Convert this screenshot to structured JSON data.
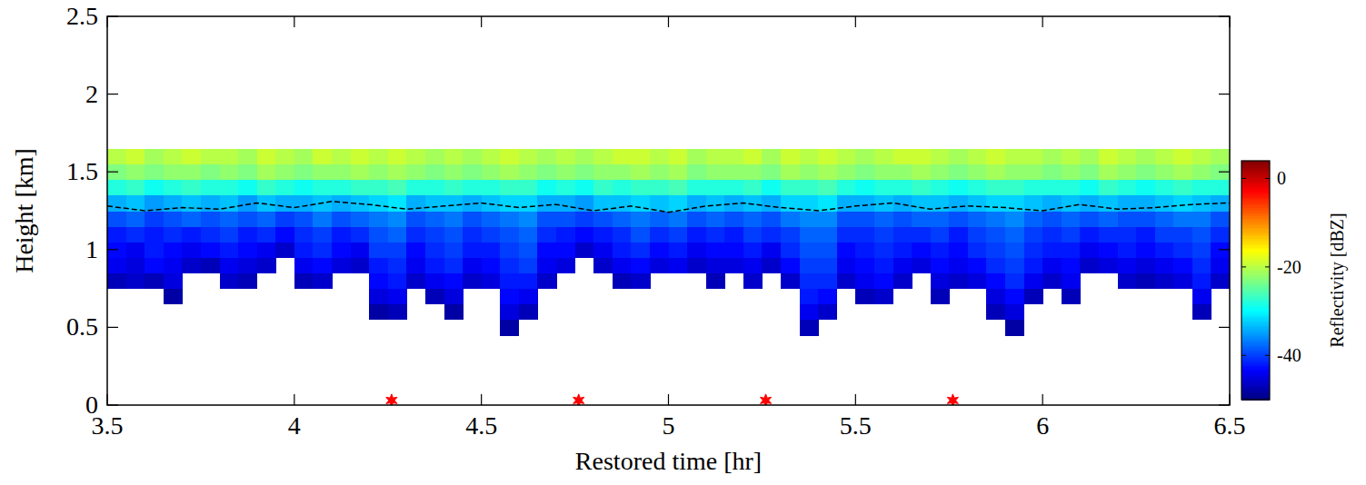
{
  "chart_data": {
    "type": "heatmap",
    "xlabel": "Restored time [hr]",
    "ylabel": "Height [km]",
    "xlim": [
      3.5,
      6.5
    ],
    "ylim": [
      0,
      2.5
    ],
    "xticks": [
      3.5,
      4,
      4.5,
      5,
      5.5,
      6,
      6.5
    ],
    "yticks": [
      0,
      0.5,
      1,
      1.5,
      2,
      2.5
    ],
    "x_edges": [
      3.5,
      3.55,
      3.6,
      3.65,
      3.7,
      3.75,
      3.8,
      3.85,
      3.9,
      3.95,
      4,
      4.05,
      4.1,
      4.15,
      4.2,
      4.25,
      4.3,
      4.35,
      4.4,
      4.45,
      4.5,
      4.55,
      4.6,
      4.65,
      4.7,
      4.75,
      4.8,
      4.85,
      4.9,
      4.95,
      5,
      5.05,
      5.1,
      5.15,
      5.2,
      5.25,
      5.3,
      5.35,
      5.4,
      5.45,
      5.5,
      5.55,
      5.6,
      5.65,
      5.7,
      5.75,
      5.8,
      5.85,
      5.9,
      5.95,
      6,
      6.05,
      6.1,
      6.15,
      6.2,
      6.25,
      6.3,
      6.35,
      6.4,
      6.45,
      6.5
    ],
    "y_edges": [
      0.45,
      0.55,
      0.65,
      0.75,
      0.85,
      0.95,
      1.05,
      1.15,
      1.25,
      1.35,
      1.45,
      1.55,
      1.65
    ],
    "cells": [
      [
        null,
        null,
        null,
        -47,
        -44,
        -43,
        -42,
        -39,
        -34,
        -28,
        -23,
        -20
      ],
      [
        null,
        null,
        null,
        -46,
        -45,
        -44,
        -41,
        -38,
        -33,
        -27,
        -22,
        -19
      ],
      [
        null,
        null,
        null,
        -47,
        -43,
        -42,
        -42,
        -40,
        -35,
        -29,
        -23,
        -21
      ],
      [
        null,
        null,
        -48,
        -45,
        -44,
        -43,
        -41,
        -39,
        -34,
        -28,
        -22,
        -20
      ],
      [
        null,
        null,
        null,
        null,
        -46,
        -44,
        -42,
        -38,
        -33,
        -27,
        -22,
        -19
      ],
      [
        null,
        null,
        null,
        null,
        -47,
        -43,
        -41,
        -39,
        -34,
        -28,
        -23,
        -20
      ],
      [
        null,
        null,
        null,
        -46,
        -44,
        -42,
        -40,
        -38,
        -33,
        -28,
        -22,
        -20
      ],
      [
        null,
        null,
        null,
        -47,
        -45,
        -43,
        -42,
        -39,
        -35,
        -29,
        -23,
        -21
      ],
      [
        null,
        null,
        null,
        null,
        -46,
        -44,
        -41,
        -38,
        -33,
        -27,
        -21,
        -19
      ],
      [
        null,
        null,
        null,
        null,
        null,
        -46,
        -43,
        -40,
        -34,
        -28,
        -22,
        -20
      ],
      [
        null,
        null,
        null,
        -47,
        -44,
        -42,
        -41,
        -39,
        -34,
        -29,
        -23,
        -21
      ],
      [
        null,
        null,
        null,
        -46,
        -43,
        -41,
        -40,
        -37,
        -33,
        -28,
        -22,
        -19
      ],
      [
        null,
        null,
        null,
        null,
        -45,
        -43,
        -42,
        -39,
        -34,
        -28,
        -22,
        -20
      ],
      [
        null,
        null,
        null,
        null,
        -46,
        -44,
        -41,
        -38,
        -33,
        -27,
        -21,
        -19
      ],
      [
        null,
        -48,
        -45,
        -43,
        -42,
        -40,
        -39,
        -37,
        -32,
        -27,
        -22,
        -20
      ],
      [
        null,
        -47,
        -44,
        -42,
        -41,
        -40,
        -38,
        -36,
        -31,
        -26,
        -21,
        -19
      ],
      [
        null,
        null,
        null,
        -46,
        -44,
        -43,
        -41,
        -39,
        -34,
        -28,
        -22,
        -20
      ],
      [
        null,
        null,
        -47,
        -44,
        -42,
        -41,
        -40,
        -38,
        -33,
        -28,
        -23,
        -21
      ],
      [
        null,
        -48,
        -45,
        -43,
        -41,
        -40,
        -39,
        -37,
        -33,
        -27,
        -22,
        -20
      ],
      [
        null,
        null,
        null,
        -46,
        -44,
        -42,
        -41,
        -39,
        -34,
        -28,
        -23,
        -21
      ],
      [
        null,
        null,
        null,
        -45,
        -43,
        -42,
        -40,
        -38,
        -33,
        -28,
        -22,
        -20
      ],
      [
        -48,
        -45,
        -43,
        -42,
        -41,
        -40,
        -39,
        -37,
        -32,
        -27,
        -21,
        -19
      ],
      [
        null,
        -47,
        -44,
        -42,
        -40,
        -39,
        -38,
        -36,
        -32,
        -27,
        -22,
        -20
      ],
      [
        null,
        null,
        null,
        -46,
        -44,
        -43,
        -41,
        -39,
        -34,
        -29,
        -23,
        -21
      ],
      [
        null,
        null,
        null,
        null,
        -45,
        -43,
        -42,
        -39,
        -34,
        -28,
        -22,
        -20
      ],
      [
        null,
        null,
        null,
        null,
        null,
        -46,
        -43,
        -40,
        -35,
        -29,
        -23,
        -21
      ],
      [
        null,
        null,
        null,
        null,
        -46,
        -44,
        -42,
        -39,
        -33,
        -27,
        -22,
        -20
      ],
      [
        null,
        null,
        null,
        -47,
        -44,
        -42,
        -41,
        -38,
        -33,
        -28,
        -22,
        -19
      ],
      [
        null,
        null,
        null,
        -46,
        -43,
        -41,
        -39,
        -37,
        -32,
        -27,
        -21,
        -19
      ],
      [
        null,
        null,
        null,
        null,
        -45,
        -43,
        -41,
        -38,
        -33,
        -27,
        -22,
        -20
      ],
      [
        null,
        null,
        null,
        null,
        -44,
        -42,
        -40,
        -37,
        -32,
        -26,
        -21,
        -19
      ],
      [
        null,
        null,
        null,
        null,
        -46,
        -44,
        -42,
        -39,
        -34,
        -28,
        -23,
        -21
      ],
      [
        null,
        null,
        null,
        -47,
        -45,
        -43,
        -41,
        -38,
        -33,
        -28,
        -22,
        -20
      ],
      [
        null,
        null,
        null,
        null,
        -45,
        -43,
        -42,
        -39,
        -34,
        -28,
        -22,
        -20
      ],
      [
        null,
        null,
        null,
        -46,
        -44,
        -42,
        -40,
        -38,
        -33,
        -27,
        -22,
        -19
      ],
      [
        null,
        null,
        null,
        null,
        -46,
        -44,
        -41,
        -39,
        -34,
        -29,
        -23,
        -21
      ],
      [
        null,
        null,
        null,
        -46,
        -43,
        -41,
        -40,
        -37,
        -32,
        -27,
        -21,
        -19
      ],
      [
        -47,
        -44,
        -42,
        -41,
        -40,
        -39,
        -38,
        -36,
        -32,
        -27,
        -22,
        -20
      ],
      [
        null,
        -46,
        -43,
        -41,
        -40,
        -39,
        -38,
        -36,
        -31,
        -26,
        -21,
        -19
      ],
      [
        null,
        null,
        null,
        -46,
        -44,
        -43,
        -41,
        -39,
        -34,
        -28,
        -22,
        -20
      ],
      [
        null,
        null,
        -47,
        -44,
        -43,
        -42,
        -41,
        -39,
        -34,
        -29,
        -23,
        -21
      ],
      [
        null,
        null,
        -46,
        -43,
        -42,
        -41,
        -40,
        -38,
        -33,
        -28,
        -22,
        -20
      ],
      [
        null,
        null,
        null,
        -46,
        -44,
        -42,
        -41,
        -39,
        -34,
        -28,
        -22,
        -19
      ],
      [
        null,
        null,
        null,
        null,
        -45,
        -43,
        -41,
        -38,
        -33,
        -27,
        -21,
        -19
      ],
      [
        null,
        null,
        -47,
        -45,
        -43,
        -42,
        -40,
        -38,
        -33,
        -28,
        -22,
        -20
      ],
      [
        null,
        null,
        null,
        -46,
        -44,
        -43,
        -42,
        -39,
        -34,
        -29,
        -23,
        -21
      ],
      [
        null,
        null,
        null,
        -45,
        -43,
        -41,
        -40,
        -38,
        -33,
        -28,
        -22,
        -20
      ],
      [
        null,
        -47,
        -45,
        -43,
        -41,
        -40,
        -39,
        -37,
        -32,
        -27,
        -21,
        -19
      ],
      [
        -48,
        -45,
        -43,
        -41,
        -40,
        -39,
        -38,
        -36,
        -32,
        -27,
        -22,
        -20
      ],
      [
        null,
        null,
        -47,
        -44,
        -42,
        -41,
        -40,
        -38,
        -33,
        -28,
        -22,
        -20
      ],
      [
        null,
        null,
        null,
        -46,
        -44,
        -42,
        -41,
        -39,
        -34,
        -28,
        -23,
        -21
      ],
      [
        null,
        null,
        -47,
        -44,
        -43,
        -42,
        -40,
        -38,
        -33,
        -28,
        -22,
        -20
      ],
      [
        null,
        null,
        null,
        null,
        -46,
        -44,
        -42,
        -39,
        -34,
        -29,
        -23,
        -21
      ],
      [
        null,
        null,
        null,
        null,
        -45,
        -43,
        -41,
        -38,
        -33,
        -27,
        -21,
        -19
      ],
      [
        null,
        null,
        null,
        -46,
        -44,
        -42,
        -41,
        -39,
        -34,
        -28,
        -22,
        -20
      ],
      [
        null,
        null,
        null,
        -47,
        -45,
        -43,
        -42,
        -39,
        -34,
        -29,
        -23,
        -21
      ],
      [
        null,
        null,
        null,
        -46,
        -44,
        -42,
        -40,
        -38,
        -33,
        -28,
        -22,
        -20
      ],
      [
        null,
        null,
        null,
        -45,
        -43,
        -41,
        -40,
        -37,
        -32,
        -27,
        -21,
        -19
      ],
      [
        null,
        -47,
        -44,
        -42,
        -41,
        -40,
        -39,
        -37,
        -33,
        -28,
        -22,
        -20
      ],
      [
        null,
        null,
        null,
        -46,
        -44,
        -43,
        -41,
        -39,
        -34,
        -28,
        -23,
        -21
      ]
    ],
    "line": {
      "x": [
        3.5,
        3.6,
        3.7,
        3.8,
        3.9,
        4,
        4.1,
        4.2,
        4.3,
        4.4,
        4.5,
        4.6,
        4.7,
        4.8,
        4.9,
        5,
        5.1,
        5.2,
        5.3,
        5.4,
        5.5,
        5.6,
        5.7,
        5.8,
        5.9,
        6,
        6.1,
        6.2,
        6.3,
        6.4,
        6.5
      ],
      "values": [
        1.28,
        1.25,
        1.27,
        1.26,
        1.3,
        1.27,
        1.31,
        1.29,
        1.26,
        1.28,
        1.3,
        1.27,
        1.29,
        1.25,
        1.28,
        1.24,
        1.28,
        1.3,
        1.27,
        1.25,
        1.28,
        1.3,
        1.26,
        1.28,
        1.27,
        1.25,
        1.29,
        1.26,
        1.27,
        1.29,
        1.3
      ],
      "line_style": "dashed",
      "color": "#000000"
    },
    "markers": {
      "x": [
        4.26,
        4.76,
        5.26,
        5.76
      ],
      "values": [
        0.03,
        0.03,
        0.03,
        0.03
      ],
      "marker": "star",
      "color": "#ff0000"
    },
    "colorbar": {
      "label": "Reflectivity [dBZ]",
      "range": [
        -50,
        4
      ],
      "ticks": [
        0,
        -20,
        -40
      ]
    }
  }
}
